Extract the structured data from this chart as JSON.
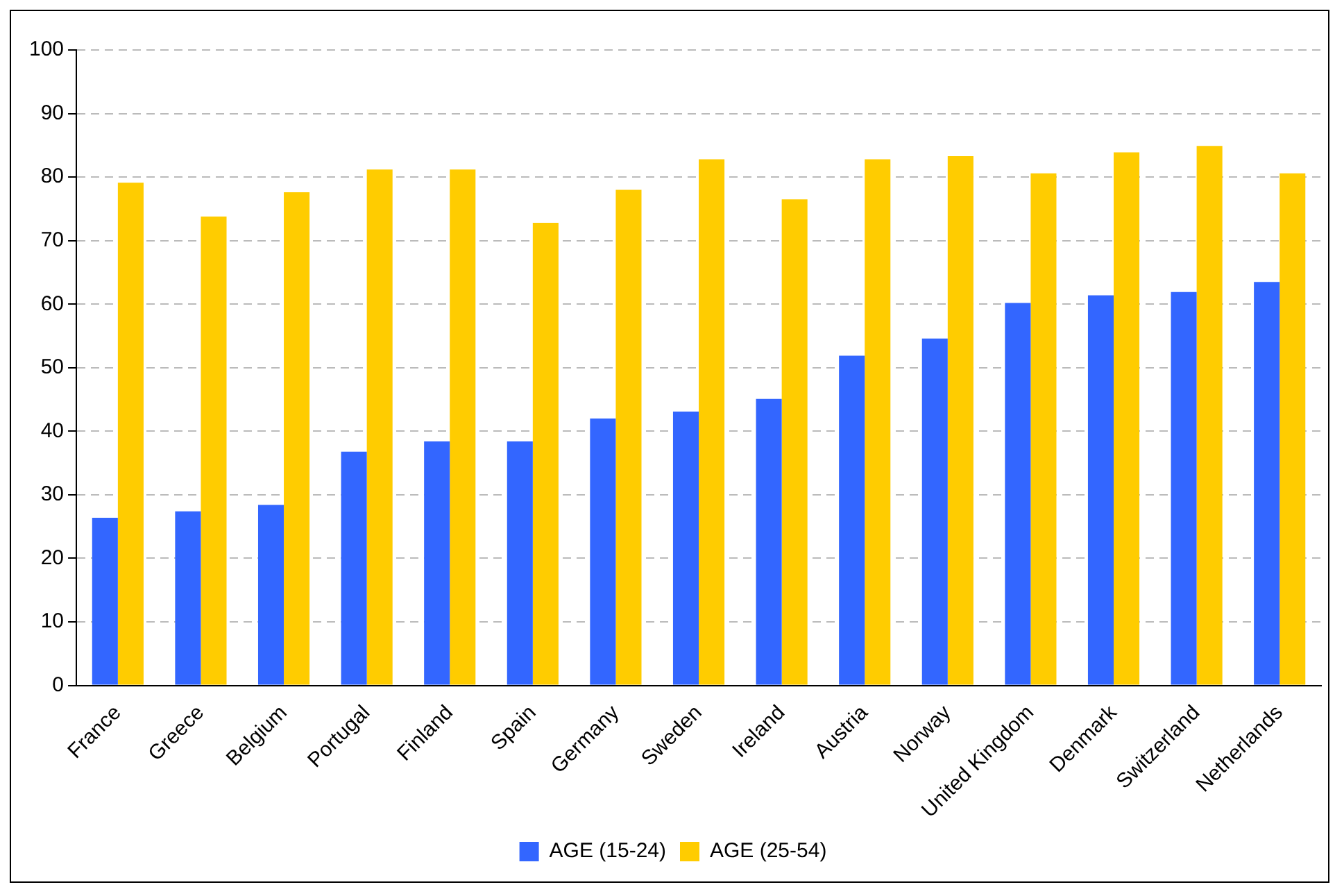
{
  "chart_data": {
    "type": "bar",
    "categories": [
      "France",
      "Greece",
      "Belgium",
      "Portugal",
      "Finland",
      "Spain",
      "Germany",
      "Sweden",
      "Ireland",
      "Austria",
      "Norway",
      "United Kingdom",
      "Denmark",
      "Switzerland",
      "Netherlands"
    ],
    "series": [
      {
        "name": "AGE (15-24)",
        "color": "#3366ff",
        "values": [
          26.4,
          27.4,
          28.4,
          36.8,
          38.4,
          38.4,
          42.0,
          43.1,
          45.1,
          51.9,
          54.6,
          60.2,
          61.4,
          61.9,
          63.5
        ]
      },
      {
        "name": "AGE (25-54)",
        "color": "#ffcc00",
        "values": [
          79.1,
          73.8,
          77.6,
          81.2,
          81.2,
          72.8,
          78.0,
          82.8,
          76.5,
          82.8,
          83.3,
          80.6,
          83.9,
          84.9,
          80.6
        ]
      }
    ],
    "ylim": [
      0,
      100
    ],
    "yticks": [
      0,
      10,
      20,
      30,
      40,
      50,
      60,
      70,
      80,
      90,
      100
    ],
    "grid": "y",
    "legend": "bottom"
  }
}
